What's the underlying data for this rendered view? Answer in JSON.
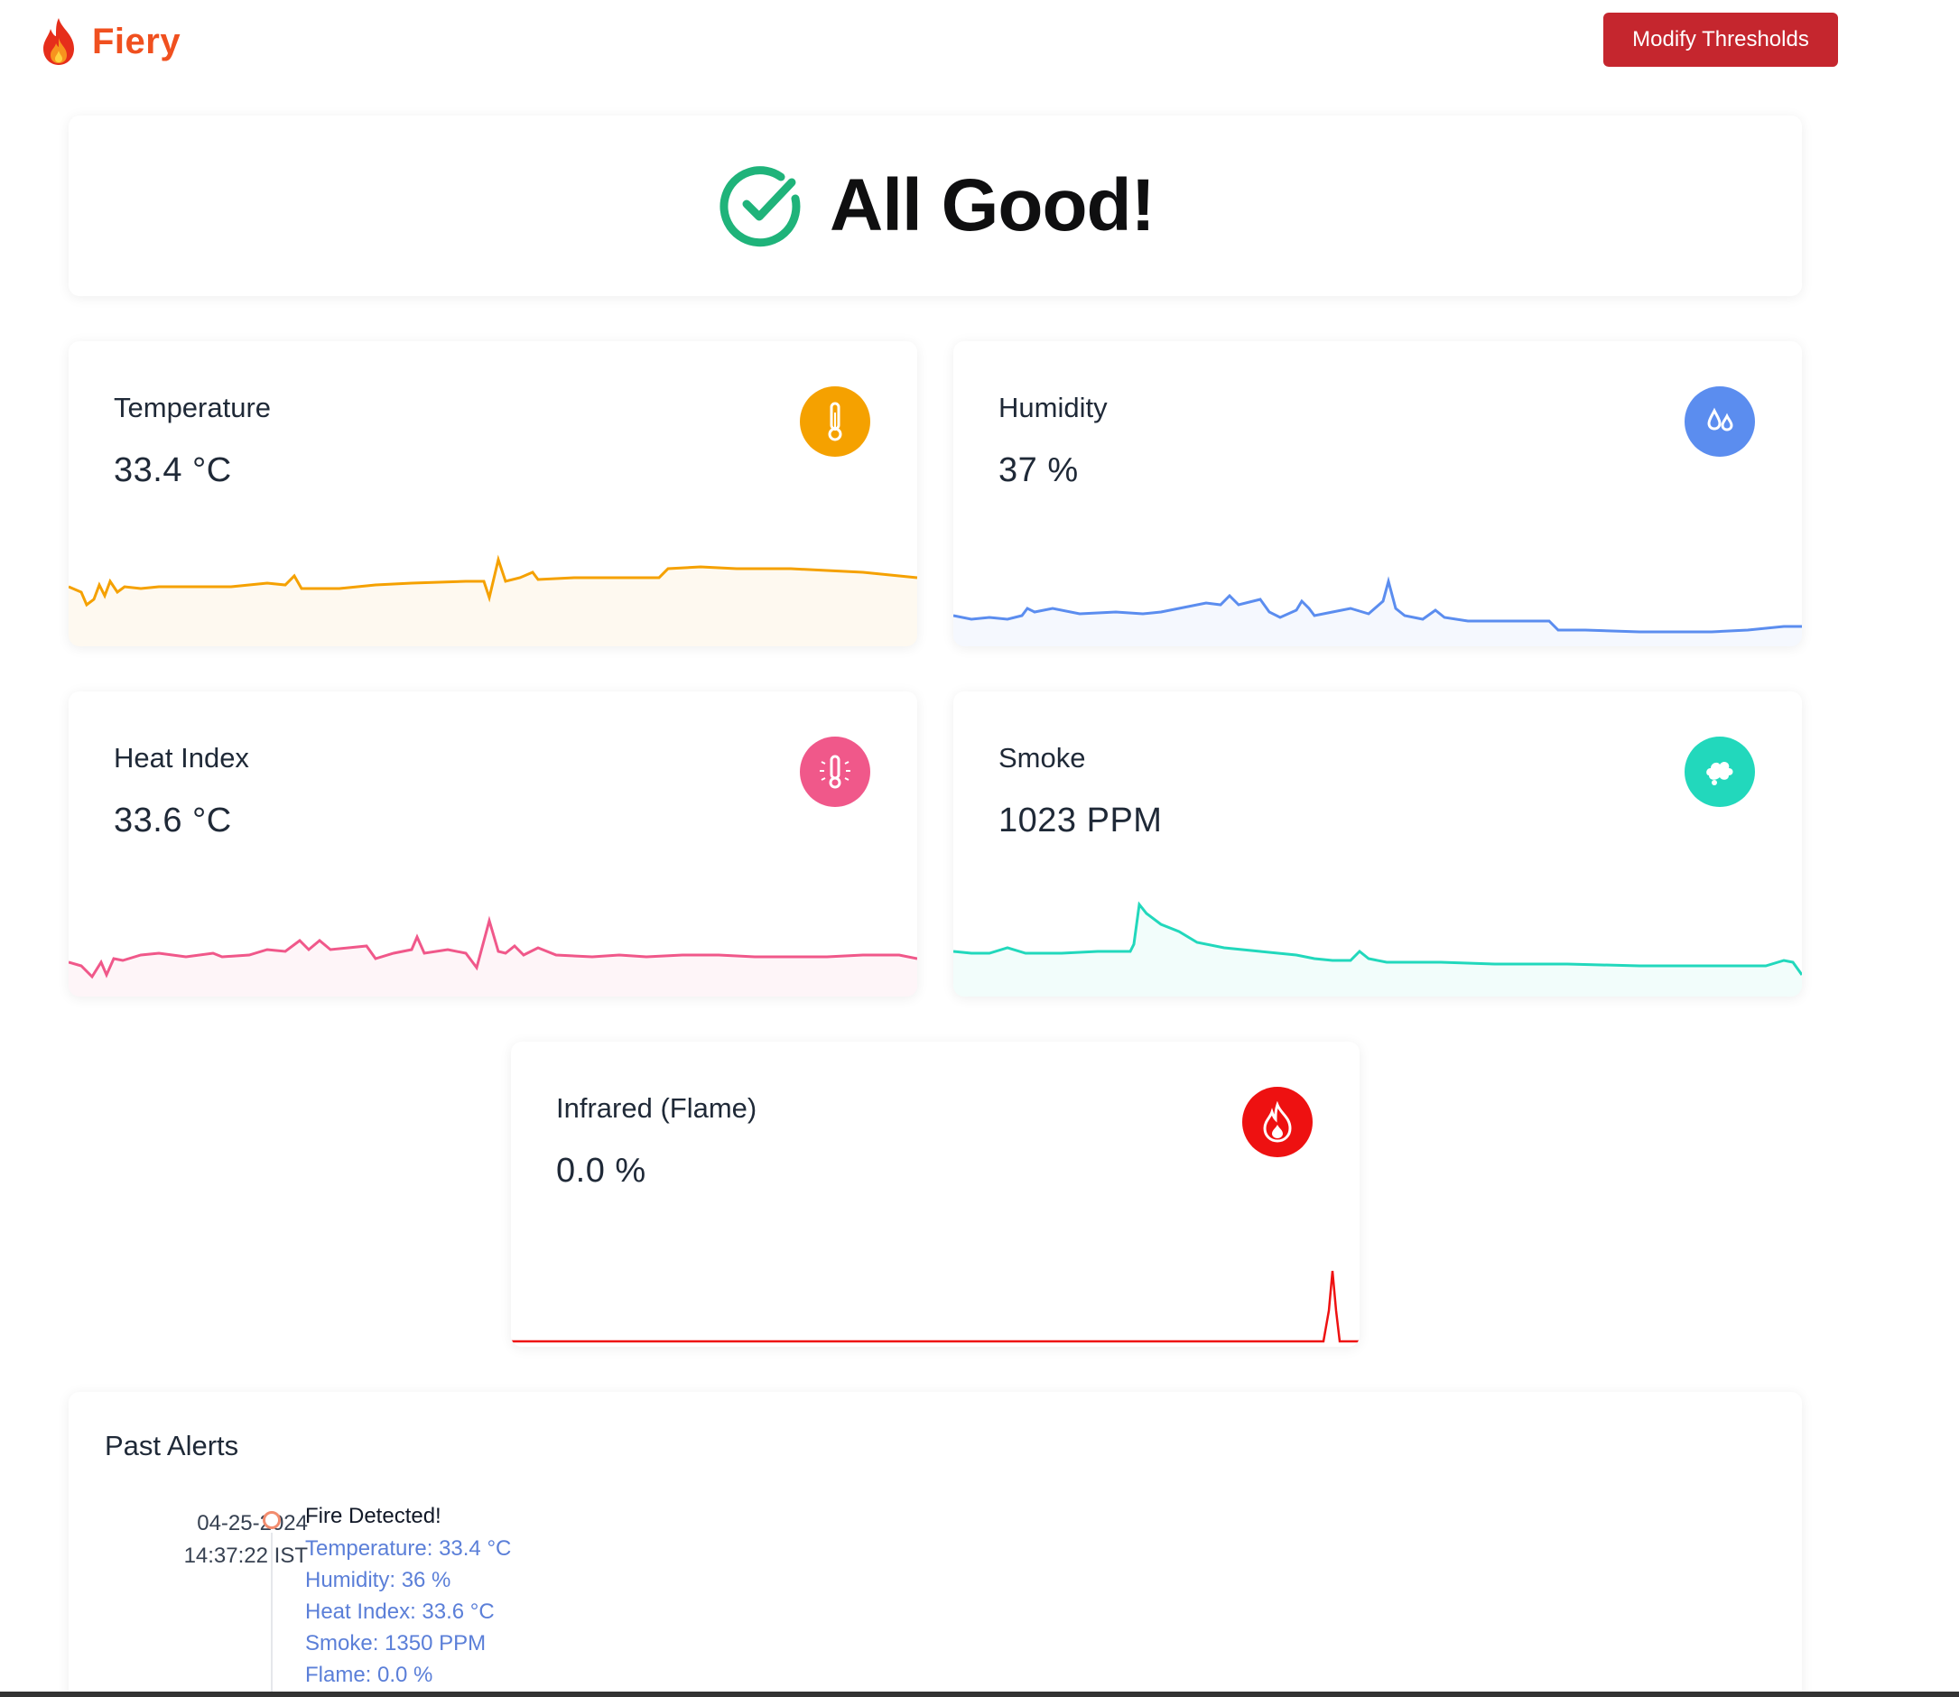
{
  "header": {
    "app_name": "Fiery",
    "modify_button": "Modify Thresholds"
  },
  "status": {
    "message": "All Good!",
    "color": "#1fb37a"
  },
  "metrics": {
    "temperature": {
      "title": "Temperature",
      "value": "33.4 °C",
      "color": "#f5a100",
      "icon": "thermometer-icon"
    },
    "humidity": {
      "title": "Humidity",
      "value": "37 %",
      "color": "#5b8def",
      "icon": "droplets-icon"
    },
    "heat_index": {
      "title": "Heat Index",
      "value": "33.6 °C",
      "color": "#f0588a",
      "icon": "thermometer-sun-icon"
    },
    "smoke": {
      "title": "Smoke",
      "value": "1023 PPM",
      "color": "#22d8bc",
      "icon": "smoke-icon"
    },
    "flame": {
      "title": "Infrared (Flame)",
      "value": "0.0 %",
      "color": "#ee1111",
      "icon": "flame-icon"
    }
  },
  "alerts": {
    "title": "Past Alerts",
    "items": [
      {
        "date": "04-25-2024",
        "time": "14:37:22 IST",
        "heading": "Fire Detected!",
        "details": [
          "Temperature: 33.4 °C",
          "Humidity: 36 %",
          "Heat Index: 33.6 °C",
          "Smoke: 1350 PPM",
          "Flame: 0.0 %"
        ]
      }
    ]
  }
}
